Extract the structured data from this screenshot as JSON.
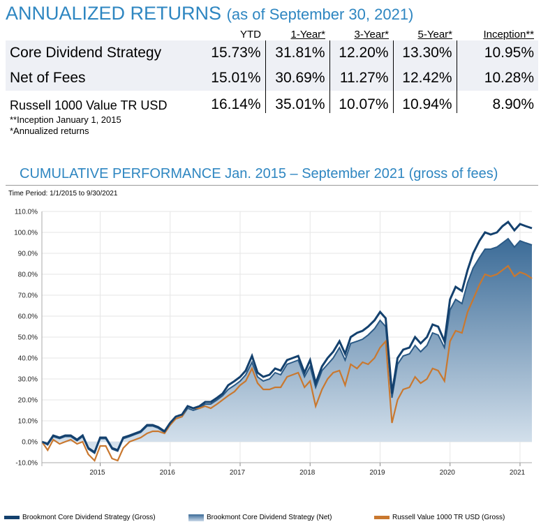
{
  "header": {
    "title": "ANNUALIZED RETURNS",
    "subtitle": "(as of September 30, 2021)"
  },
  "table": {
    "columns": [
      "YTD",
      "1-Year*",
      "3-Year*",
      "5-Year*",
      "Inception**"
    ],
    "rows": [
      {
        "name": "Core Dividend Strategy",
        "values": [
          "15.73%",
          "31.81%",
          "12.20%",
          "13.30%",
          "10.95%"
        ]
      },
      {
        "name": "Net of Fees",
        "values": [
          "15.01%",
          "30.69%",
          "11.27%",
          "12.42%",
          "10.28%"
        ]
      },
      {
        "name": "Russell 1000 Value TR USD",
        "values": [
          "16.14%",
          "35.01%",
          "10.07%",
          "10.94%",
          "8.90%"
        ]
      }
    ]
  },
  "footnotes": [
    "**Inception January 1, 2015",
    "*Annualized returns"
  ],
  "chart_title": "CUMULATIVE PERFORMANCE Jan. 2015 – September 2021 (gross of fees)",
  "time_period": "Time Period: 1/1/2015 to 9/30/2021",
  "colors": {
    "gross": "#14416e",
    "net_top": "#3b6b97",
    "net_bottom": "#dbe6f0",
    "russell": "#c9782f",
    "title": "#2e86c1"
  },
  "chart_data": {
    "type": "area",
    "ylim": [
      -10,
      110
    ],
    "xlim": [
      2014.167,
      2021.17
    ],
    "yticks": [
      -10,
      0,
      10,
      20,
      30,
      40,
      50,
      60,
      70,
      80,
      90,
      100,
      110
    ],
    "ytick_labels": [
      "-10.0%",
      "0.0%",
      "10.0%",
      "20.0%",
      "30.0%",
      "40.0%",
      "50.0%",
      "60.0%",
      "70.0%",
      "80.0%",
      "90.0%",
      "100.0%",
      "110.0%"
    ],
    "xticks": [
      2015,
      2016,
      2017,
      2018,
      2019,
      2020,
      2021
    ],
    "xtick_labels": [
      "2015",
      "2016",
      "2017",
      "2018",
      "2019",
      "2020",
      "2021"
    ],
    "grid": true,
    "legend_position": "bottom",
    "series": [
      {
        "name": "Brookmont Core Dividend Strategy (Gross)",
        "x": [
          2014.167,
          2014.25,
          2014.33,
          2014.42,
          2014.5,
          2014.58,
          2014.67,
          2014.75,
          2014.83,
          2014.92,
          2015.0,
          2015.08,
          2015.17,
          2015.25,
          2015.33,
          2015.42,
          2015.5,
          2015.58,
          2015.67,
          2015.75,
          2015.83,
          2015.92,
          2016.0,
          2016.08,
          2016.17,
          2016.25,
          2016.33,
          2016.42,
          2016.5,
          2016.58,
          2016.67,
          2016.75,
          2016.83,
          2016.92,
          2017.0,
          2017.08,
          2017.17,
          2017.25,
          2017.33,
          2017.42,
          2017.5,
          2017.58,
          2017.67,
          2017.75,
          2017.83,
          2017.92,
          2018.0,
          2018.08,
          2018.17,
          2018.25,
          2018.33,
          2018.42,
          2018.5,
          2018.58,
          2018.67,
          2018.75,
          2018.83,
          2018.92,
          2019.0,
          2019.08,
          2019.17,
          2019.25,
          2019.33,
          2019.42,
          2019.5,
          2019.58,
          2019.67,
          2019.75,
          2019.83,
          2019.92,
          2020.0,
          2020.08,
          2020.17,
          2020.25,
          2020.33,
          2020.42,
          2020.5,
          2020.58,
          2020.67,
          2020.75,
          2020.83,
          2020.92,
          2021.0,
          2021.08,
          2021.17
        ],
        "values": [
          0,
          -1,
          3,
          2,
          3,
          3,
          1,
          3,
          -3,
          -5,
          2,
          2,
          -3,
          -4,
          2,
          3,
          4,
          5,
          8,
          8,
          7,
          5,
          9,
          12,
          13,
          17,
          16,
          17,
          19,
          19,
          21,
          23,
          27,
          29,
          31,
          34,
          41,
          33,
          31,
          32,
          35,
          34,
          39,
          40,
          41,
          33,
          39,
          28,
          36,
          40,
          43,
          48,
          42,
          50,
          52,
          53,
          55,
          58,
          62,
          59,
          23,
          40,
          44,
          45,
          50,
          47,
          50,
          56,
          55,
          48,
          68,
          74,
          72,
          82,
          90,
          96,
          100,
          99,
          100,
          103,
          105,
          101,
          104,
          103,
          102
        ]
      },
      {
        "name": "Brookmont Core Dividend Strategy (Net)",
        "x": [
          2014.167,
          2014.25,
          2014.33,
          2014.42,
          2014.5,
          2014.58,
          2014.67,
          2014.75,
          2014.83,
          2014.92,
          2015.0,
          2015.08,
          2015.17,
          2015.25,
          2015.33,
          2015.42,
          2015.5,
          2015.58,
          2015.67,
          2015.75,
          2015.83,
          2015.92,
          2016.0,
          2016.08,
          2016.17,
          2016.25,
          2016.33,
          2016.42,
          2016.5,
          2016.58,
          2016.67,
          2016.75,
          2016.83,
          2016.92,
          2017.0,
          2017.08,
          2017.17,
          2017.25,
          2017.33,
          2017.42,
          2017.5,
          2017.58,
          2017.67,
          2017.75,
          2017.83,
          2017.92,
          2018.0,
          2018.08,
          2018.17,
          2018.25,
          2018.33,
          2018.42,
          2018.5,
          2018.58,
          2018.67,
          2018.75,
          2018.83,
          2018.92,
          2019.0,
          2019.08,
          2019.17,
          2019.25,
          2019.33,
          2019.42,
          2019.5,
          2019.58,
          2019.67,
          2019.75,
          2019.83,
          2019.92,
          2020.0,
          2020.08,
          2020.17,
          2020.25,
          2020.33,
          2020.42,
          2020.5,
          2020.58,
          2020.67,
          2020.75,
          2020.83,
          2020.92,
          2021.0,
          2021.08,
          2021.17
        ],
        "values": [
          0,
          -1.5,
          2.5,
          1.5,
          2.5,
          2.5,
          0.5,
          2.5,
          -3.5,
          -5.5,
          1.5,
          1.5,
          -3.5,
          -4.5,
          1.5,
          2.5,
          3.5,
          4.5,
          7.5,
          7.5,
          6.5,
          4.5,
          8.5,
          11,
          12,
          16,
          15,
          16,
          18,
          18,
          20,
          22,
          25,
          27,
          29,
          32,
          38,
          31,
          29,
          30,
          33,
          32,
          37,
          38,
          39,
          31,
          36,
          26,
          34,
          37,
          40,
          45,
          39,
          47,
          48,
          49,
          51,
          54,
          58,
          55,
          21,
          37,
          41,
          42,
          46,
          43,
          46,
          52,
          51,
          45,
          63,
          68,
          66,
          76,
          83,
          88,
          92,
          92,
          93,
          95,
          97,
          93,
          96,
          95,
          94
        ]
      },
      {
        "name": "Russell Value 1000 TR USD (Gross)",
        "x": [
          2014.167,
          2014.25,
          2014.33,
          2014.42,
          2014.5,
          2014.58,
          2014.67,
          2014.75,
          2014.83,
          2014.92,
          2015.0,
          2015.08,
          2015.17,
          2015.25,
          2015.33,
          2015.42,
          2015.5,
          2015.58,
          2015.67,
          2015.75,
          2015.83,
          2015.92,
          2016.0,
          2016.08,
          2016.17,
          2016.25,
          2016.33,
          2016.42,
          2016.5,
          2016.58,
          2016.67,
          2016.75,
          2016.83,
          2016.92,
          2017.0,
          2017.08,
          2017.17,
          2017.25,
          2017.33,
          2017.42,
          2017.5,
          2017.58,
          2017.67,
          2017.75,
          2017.83,
          2017.92,
          2018.0,
          2018.08,
          2018.17,
          2018.25,
          2018.33,
          2018.42,
          2018.5,
          2018.58,
          2018.67,
          2018.75,
          2018.83,
          2018.92,
          2019.0,
          2019.08,
          2019.17,
          2019.25,
          2019.33,
          2019.42,
          2019.5,
          2019.58,
          2019.67,
          2019.75,
          2019.83,
          2019.92,
          2020.0,
          2020.08,
          2020.17,
          2020.25,
          2020.33,
          2020.42,
          2020.5,
          2020.58,
          2020.67,
          2020.75,
          2020.83,
          2020.92,
          2021.0,
          2021.08,
          2021.17
        ],
        "values": [
          0,
          -4,
          1,
          -1,
          0,
          1,
          -1,
          0,
          -6,
          -9,
          -2,
          -2,
          -8,
          -9,
          -3,
          0,
          1,
          2,
          4,
          5,
          5,
          4,
          8,
          11,
          12,
          17,
          16,
          16,
          17,
          16,
          18,
          20,
          22,
          24,
          27,
          29,
          35,
          28,
          25,
          25,
          26,
          26,
          31,
          32,
          33,
          26,
          29,
          17,
          25,
          30,
          33,
          34,
          27,
          37,
          35,
          38,
          37,
          40,
          45,
          48,
          9,
          20,
          25,
          26,
          31,
          28,
          30,
          35,
          34,
          29,
          48,
          53,
          52,
          62,
          68,
          75,
          80,
          79,
          80,
          82,
          84,
          79,
          81,
          80,
          78
        ]
      }
    ]
  },
  "legend": {
    "gross": "Brookmont Core Dividend Strategy (Gross)",
    "net": "Brookmont Core Dividend Strategy (Net)",
    "russell": "Russell Value 1000 TR USD (Gross)"
  }
}
